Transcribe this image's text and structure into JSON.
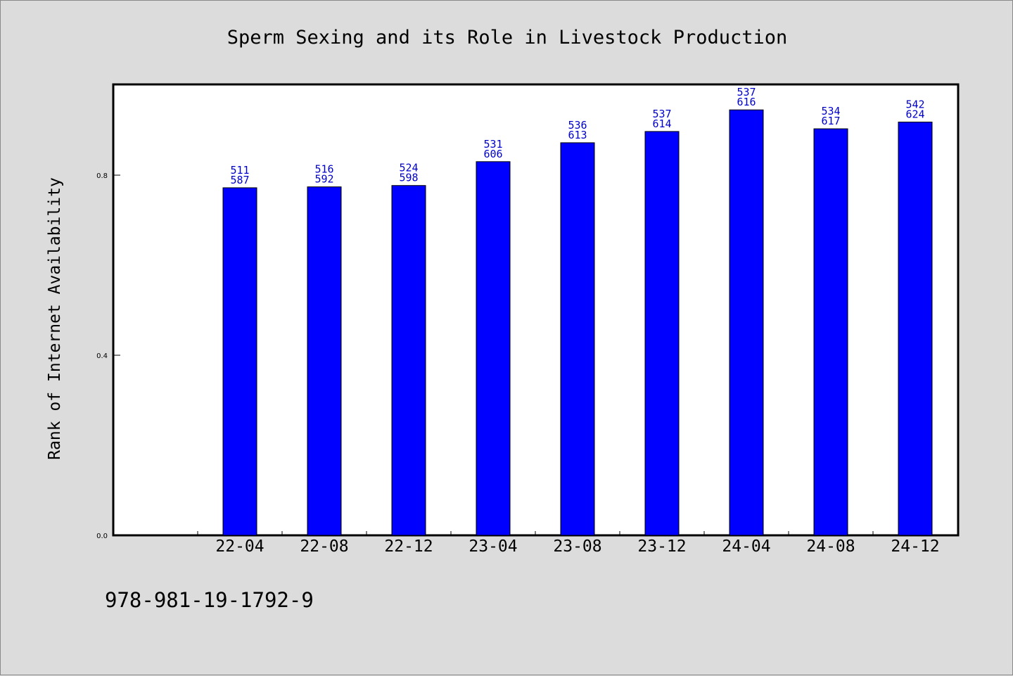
{
  "chart_data": {
    "type": "bar",
    "title": "Sperm Sexing and its Role in Livestock Production",
    "xlabel": "",
    "ylabel": "Rank of Internet Availability",
    "categories": [
      "22-04",
      "22-08",
      "22-12",
      "23-04",
      "23-08",
      "23-12",
      "24-04",
      "24-08",
      "24-12"
    ],
    "values": [
      0.772,
      0.774,
      0.777,
      0.83,
      0.872,
      0.897,
      0.945,
      0.903,
      0.918
    ],
    "data_labels_top": [
      "511",
      "516",
      "524",
      "531",
      "536",
      "537",
      "537",
      "534",
      "542"
    ],
    "data_labels_bottom": [
      "587",
      "592",
      "598",
      "606",
      "613",
      "614",
      "616",
      "617",
      "624"
    ],
    "yticks": [
      "0.0",
      "0.4",
      "0.8"
    ],
    "ylim": [
      0,
      1.0
    ],
    "grid": false,
    "bar_color": "#0000ff",
    "label_color": "#0000cc",
    "footnote": "978-981-19-1792-9"
  }
}
